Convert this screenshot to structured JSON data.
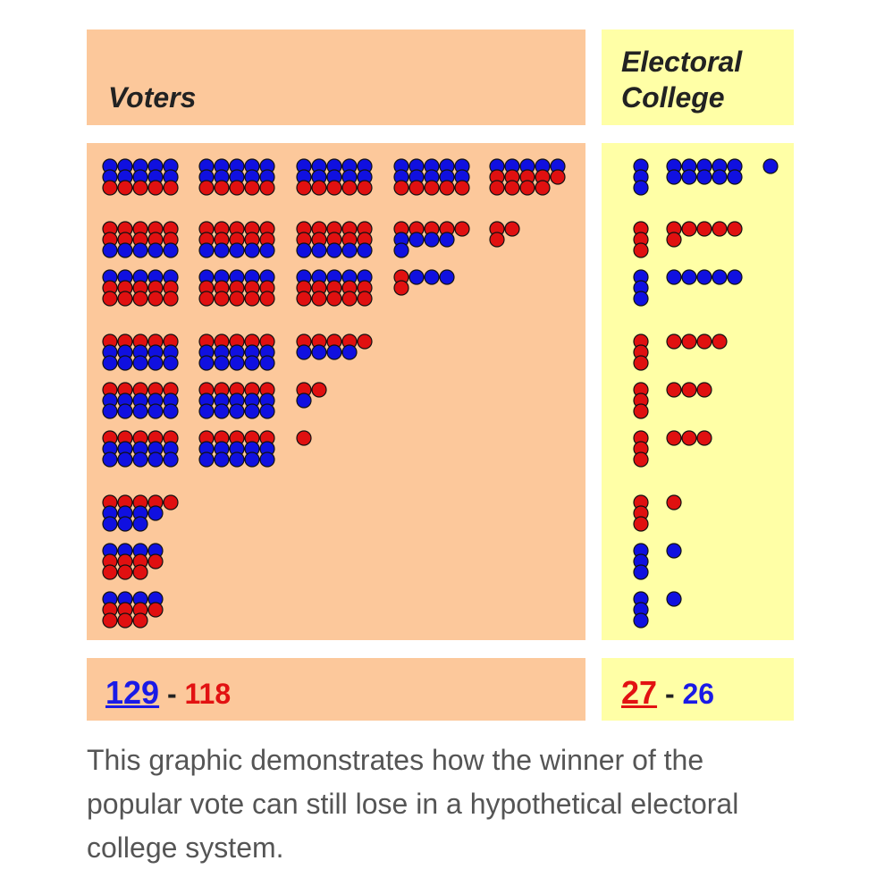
{
  "header": {
    "voters": "Voters",
    "electoral": [
      "Electoral",
      "College"
    ]
  },
  "footer": {
    "popular": {
      "blue": "129",
      "separator": "-",
      "red": "118"
    },
    "electoral": {
      "red": "27",
      "separator": "-",
      "blue": "26"
    }
  },
  "caption": "This graphic demonstrates how the winner of the popular vote can still lose in a hypothetical electoral college system."
}
